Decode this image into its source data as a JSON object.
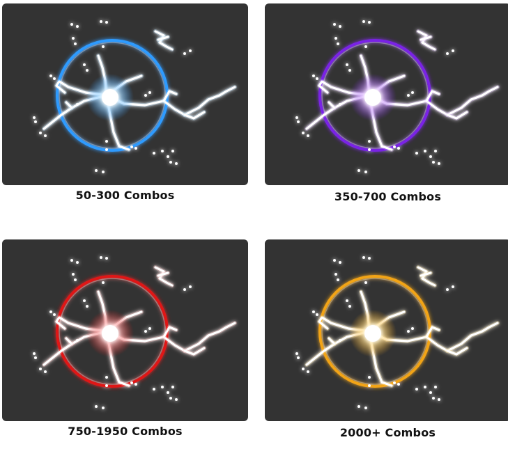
{
  "tiers": [
    {
      "label": "50-300 Combos",
      "color": "#2f9bff",
      "glow": "#bfe6ff"
    },
    {
      "label": "350-700 Combos",
      "color": "#7a22e6",
      "glow": "#e6c6ff"
    },
    {
      "label": "750-1950 Combos",
      "color": "#e01818",
      "glow": "#ffc4c4"
    },
    {
      "label": "2000+ Combos",
      "color": "#f2a413",
      "glow": "#ffe7a8"
    }
  ]
}
